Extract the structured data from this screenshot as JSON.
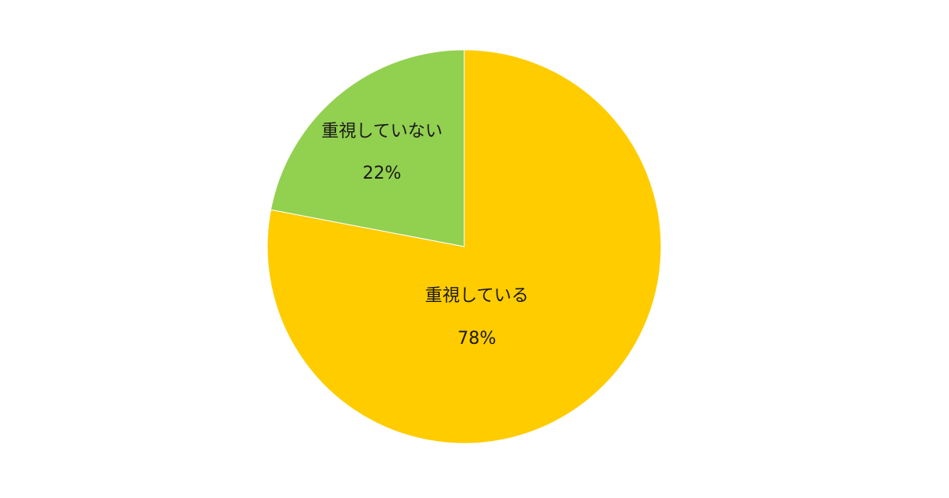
{
  "chart_data": {
    "type": "pie",
    "title": "",
    "start_angle": "12 o'clock",
    "direction": "counterclockwise for first slice",
    "slices": [
      {
        "label": "重視していない",
        "value": 22,
        "value_label": "22%",
        "color": "#92D050"
      },
      {
        "label": "重視している",
        "value": 78,
        "value_label": "78%",
        "color": "#FFCC00"
      }
    ],
    "legend": "none"
  }
}
